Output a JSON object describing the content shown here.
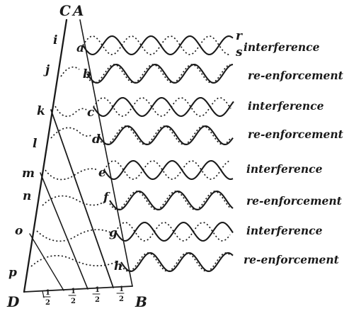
{
  "top_labels": {
    "c": "C",
    "a": "A"
  },
  "bottom_labels": {
    "d": "D",
    "b": "B"
  },
  "left_points": [
    "i",
    "j",
    "k",
    "l",
    "m",
    "n",
    "o",
    "p"
  ],
  "right_points": [
    "a",
    "b",
    "c",
    "d",
    "e",
    "f",
    "g",
    "h"
  ],
  "wave_end_labels": {
    "r": "r",
    "s": "s"
  },
  "rows": [
    {
      "result": "interference"
    },
    {
      "result": "re-enforcement"
    },
    {
      "result": "interference"
    },
    {
      "result": "re-enforcement"
    },
    {
      "result": "interference"
    },
    {
      "result": "re-enforcement"
    },
    {
      "result": "interference"
    },
    {
      "result": "re-enforcement"
    }
  ],
  "baseline_fractions": [
    {
      "num": "1",
      "den": "2"
    },
    {
      "num": "1",
      "den": "2"
    },
    {
      "num": "1",
      "den": "2"
    },
    {
      "num": "1",
      "den": "2"
    }
  ]
}
